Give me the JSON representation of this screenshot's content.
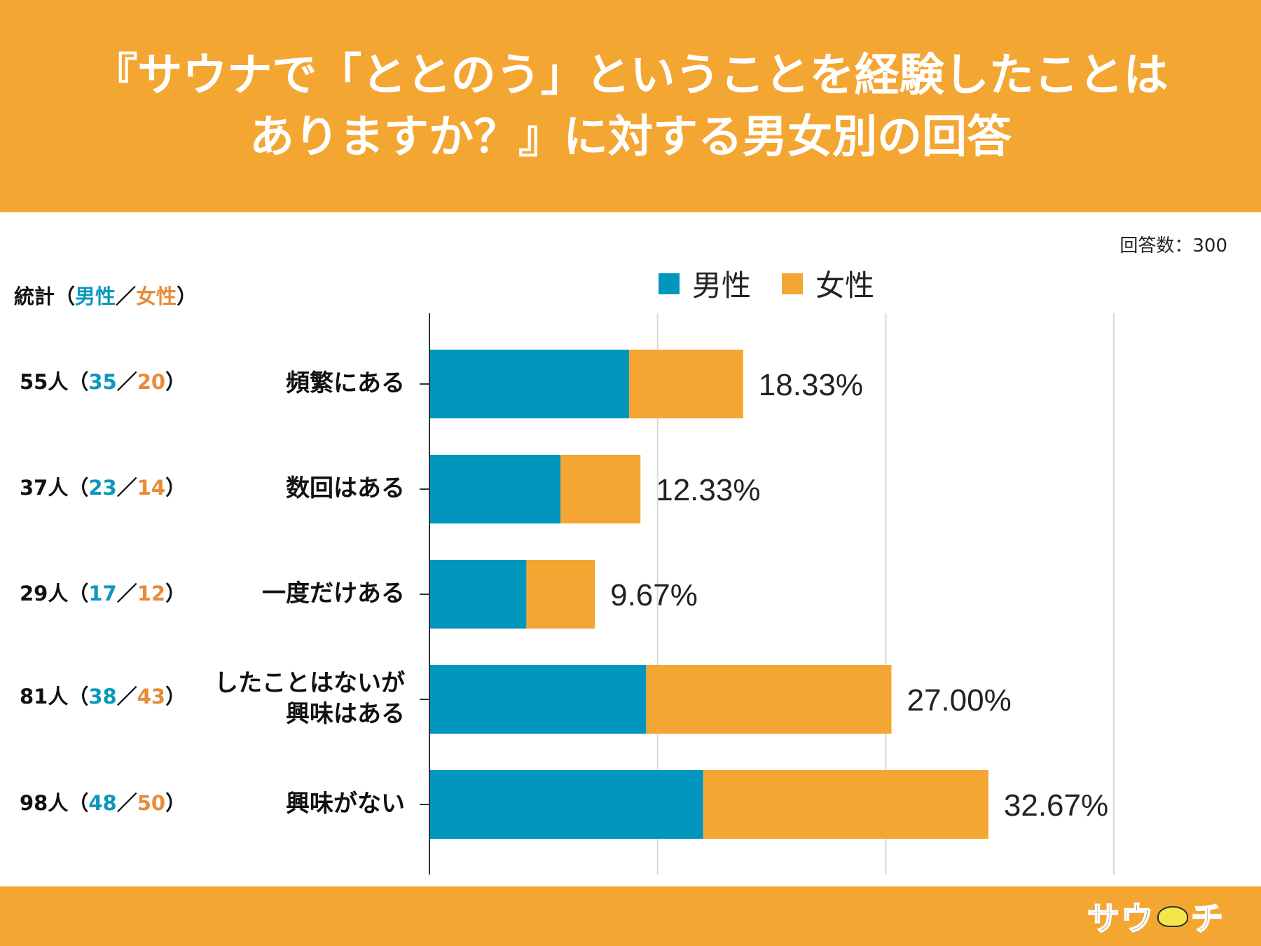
{
  "header": {
    "title": "『サウナで「ととのう」ということを経験したことは\nありますか？』に対する男女別の回答"
  },
  "respondents_label": "回答数：300",
  "stats_title": {
    "prefix": "統計（",
    "male": "男性",
    "sep": "／",
    "female": "女性",
    "suffix": "）"
  },
  "legend": {
    "male": "男性",
    "female": "女性"
  },
  "colors": {
    "male": "#0096bd",
    "female": "#f4a633",
    "header": "#f4a633"
  },
  "stats": [
    {
      "total": "55人",
      "male": "35",
      "female": "20"
    },
    {
      "total": "37人",
      "male": "23",
      "female": "14"
    },
    {
      "total": "29人",
      "male": "17",
      "female": "12"
    },
    {
      "total": "81人",
      "male": "38",
      "female": "43"
    },
    {
      "total": "98人",
      "male": "48",
      "female": "50"
    }
  ],
  "logo": {
    "text_left": "サウ",
    "text_right": "チ"
  },
  "chart_data": {
    "type": "bar",
    "orientation": "horizontal",
    "stacked": true,
    "categories": [
      "頻繁にある",
      "数回はある",
      "一度だけある",
      "したことはないが\n興味はある",
      "興味がない"
    ],
    "series": [
      {
        "name": "男性",
        "values": [
          35,
          23,
          17,
          38,
          48
        ]
      },
      {
        "name": "女性",
        "values": [
          20,
          14,
          12,
          43,
          50
        ]
      }
    ],
    "data_labels": [
      "18.33%",
      "12.33%",
      "9.67%",
      "27.00%",
      "32.67%"
    ],
    "xlim": [
      0,
      120
    ],
    "grid": true,
    "legend": "top"
  }
}
